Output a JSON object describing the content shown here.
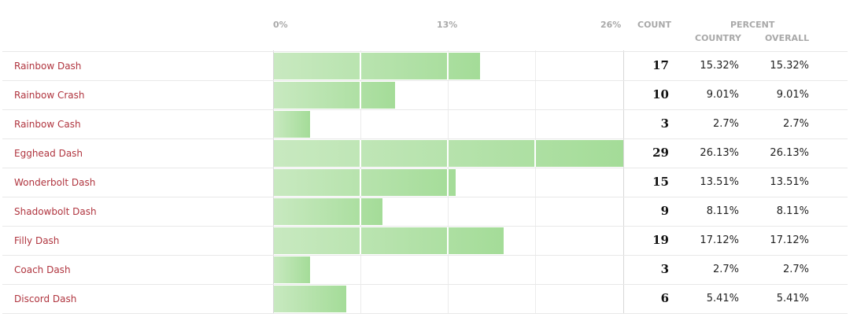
{
  "header": {
    "ticks": [
      "0%",
      "13%",
      "26%"
    ],
    "count_label": "COUNT",
    "percent_label": "PERCENT",
    "country_label": "COUNTRY",
    "overall_label": "OVERALL"
  },
  "colors": {
    "name": "#b0353f",
    "bar_light": "#c8e9c0",
    "bar_dark": "#a4dc98"
  },
  "chart_data": {
    "type": "bar",
    "orientation": "horizontal",
    "xlim": [
      0,
      26
    ],
    "x_ticks": [
      "0%",
      "13%",
      "26%"
    ],
    "grid": true,
    "categories": [
      "Rainbow Dash",
      "Rainbow Crash",
      "Rainbow Cash",
      "Egghead Dash",
      "Wonderbolt Dash",
      "Shadowbolt Dash",
      "Filly Dash",
      "Coach Dash",
      "Discord Dash"
    ],
    "values": [
      15.32,
      9.01,
      2.7,
      26.13,
      13.51,
      8.11,
      17.12,
      2.7,
      5.41
    ],
    "rows": [
      {
        "name": "Rainbow Dash",
        "count": "17",
        "country": "15.32%",
        "overall": "15.32%",
        "value": 15.32
      },
      {
        "name": "Rainbow Crash",
        "count": "10",
        "country": "9.01%",
        "overall": "9.01%",
        "value": 9.01
      },
      {
        "name": "Rainbow Cash",
        "count": "3",
        "country": "2.7%",
        "overall": "2.7%",
        "value": 2.7
      },
      {
        "name": "Egghead Dash",
        "count": "29",
        "country": "26.13%",
        "overall": "26.13%",
        "value": 26.13
      },
      {
        "name": "Wonderbolt Dash",
        "count": "15",
        "country": "13.51%",
        "overall": "13.51%",
        "value": 13.51
      },
      {
        "name": "Shadowbolt Dash",
        "count": "9",
        "country": "8.11%",
        "overall": "8.11%",
        "value": 8.11
      },
      {
        "name": "Filly Dash",
        "count": "19",
        "country": "17.12%",
        "overall": "17.12%",
        "value": 17.12
      },
      {
        "name": "Coach Dash",
        "count": "3",
        "country": "2.7%",
        "overall": "2.7%",
        "value": 2.7
      },
      {
        "name": "Discord Dash",
        "count": "6",
        "country": "5.41%",
        "overall": "5.41%",
        "value": 5.41
      }
    ]
  }
}
